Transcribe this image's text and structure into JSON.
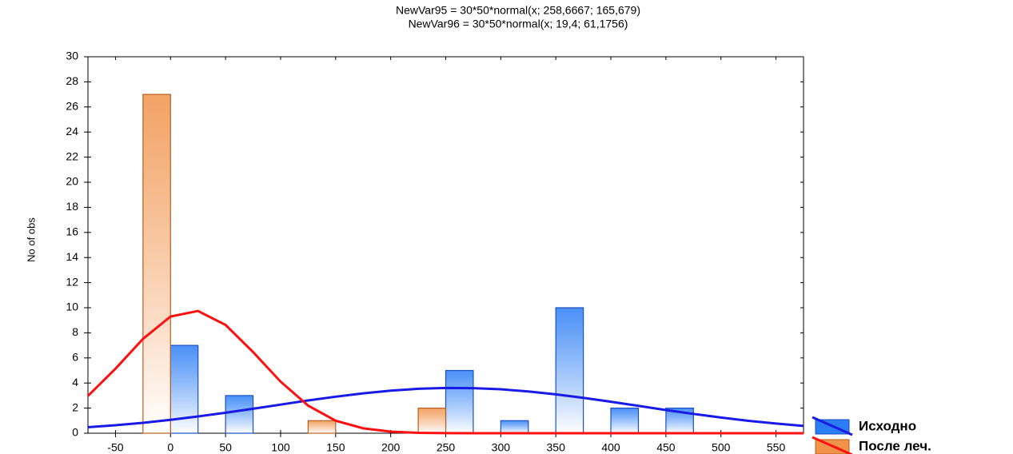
{
  "chart_data": {
    "type": "histogram",
    "title": [
      "NewVar95 = 30*50*normal(x; 258,6667; 165,679)",
      "NewVar96 = 30*50*normal(x; 19,4; 61,1756)"
    ],
    "y_label": "No of obs",
    "bins": [
      -25,
      25,
      75,
      125,
      175,
      225,
      275,
      325,
      375,
      425,
      475,
      525,
      575
    ],
    "series": [
      {
        "name": "Исходно",
        "color": "#2a7df5",
        "edge_color": "#1b4fc4",
        "values": [
          7,
          3,
          0,
          0,
          0,
          5,
          1,
          10,
          2,
          2,
          0,
          0
        ],
        "curve_color": "#1a1ae6"
      },
      {
        "name": "После леч.",
        "color": "#f0924a",
        "edge_color": "#b8601e",
        "values": [
          27,
          0,
          0,
          1,
          0,
          2,
          0,
          0,
          0,
          0,
          0,
          0
        ],
        "curve_color": "#ff1010"
      }
    ],
    "curve_x": [
      -75,
      -50,
      -25,
      0,
      25,
      50,
      75,
      100,
      125,
      150,
      175,
      200,
      225,
      250,
      275,
      300,
      325,
      350,
      375,
      400,
      425,
      450,
      475,
      500,
      525,
      550,
      575
    ],
    "curves": [
      [
        0.48,
        0.64,
        0.83,
        1.07,
        1.34,
        1.63,
        1.95,
        2.28,
        2.61,
        2.91,
        3.18,
        3.39,
        3.54,
        3.61,
        3.59,
        3.5,
        3.33,
        3.1,
        2.82,
        2.51,
        2.18,
        1.85,
        1.54,
        1.25,
        0.99,
        0.77,
        0.58
      ],
      [
        2.97,
        5.14,
        7.52,
        9.3,
        9.74,
        8.63,
        6.47,
        4.11,
        2.2,
        1.0,
        0.39,
        0.13,
        0.03,
        0.01,
        0,
        0,
        0,
        0,
        0,
        0,
        0,
        0,
        0,
        0,
        0,
        0,
        0
      ]
    ],
    "xlim": [
      -75,
      575
    ],
    "ylim": [
      0,
      30
    ],
    "xticks": [
      -50,
      0,
      50,
      100,
      150,
      200,
      250,
      300,
      350,
      400,
      450,
      500,
      550
    ],
    "yticks": [
      0,
      2,
      4,
      6,
      8,
      10,
      12,
      14,
      16,
      18,
      20,
      22,
      24,
      26,
      28,
      30
    ],
    "grid": false,
    "legend": "lower right"
  }
}
